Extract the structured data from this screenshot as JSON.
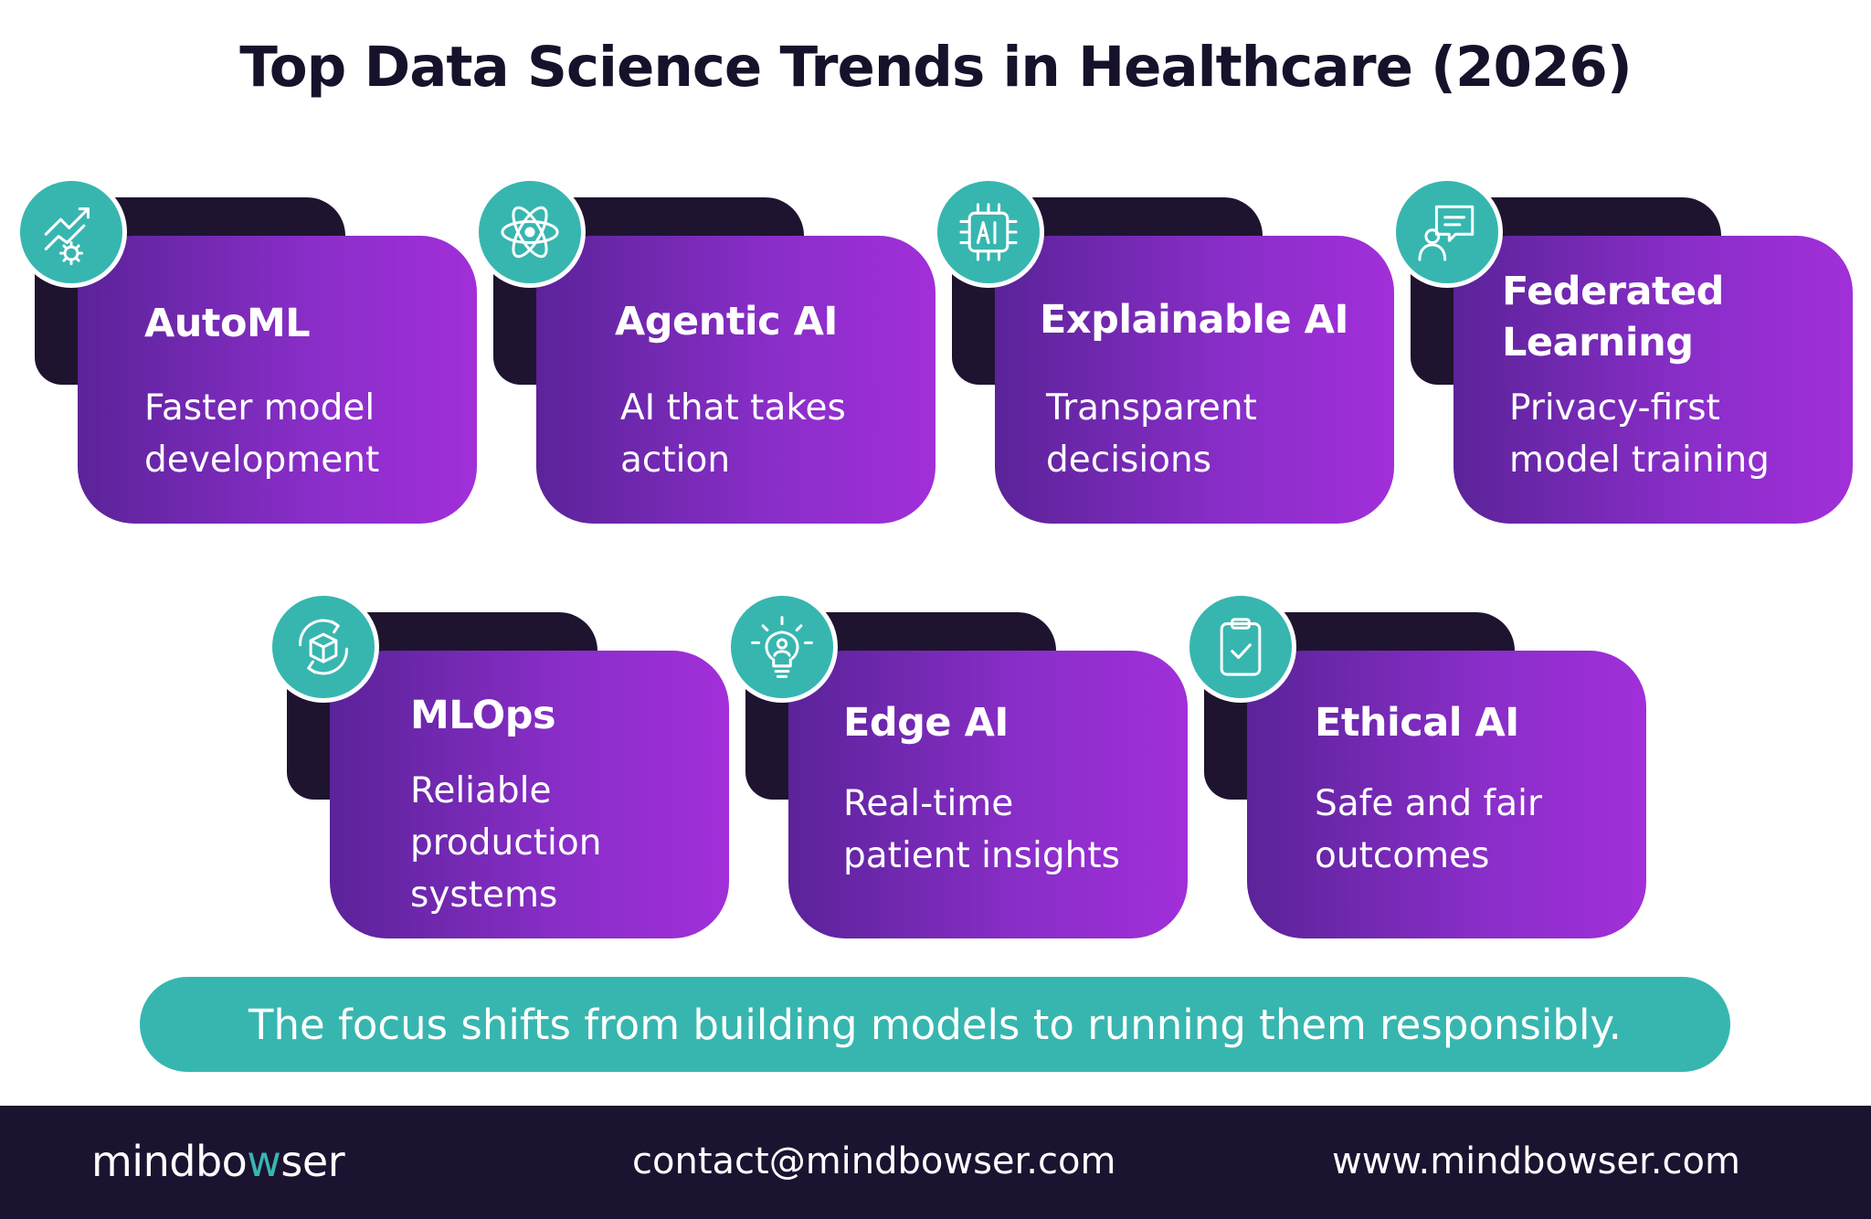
{
  "title": "Top Data Science Trends in Healthcare (2026)",
  "cards": [
    {
      "title": "AutoML",
      "description": [
        "Faster model",
        "development"
      ],
      "icon": "growth-chart-gear-icon"
    },
    {
      "title": "Agentic AI",
      "description": [
        "AI that takes",
        "action"
      ],
      "icon": "atom-icon"
    },
    {
      "title": "Explainable AI",
      "description": [
        "Transparent",
        "decisions"
      ],
      "icon": "ai-chip-icon"
    },
    {
      "title": "Federated Learning",
      "title_lines": [
        "Federated",
        "Learning"
      ],
      "description": [
        "Privacy-first",
        "model training"
      ],
      "icon": "user-chat-icon"
    },
    {
      "title": "MLOps",
      "description": [
        "Reliable",
        "production",
        "systems"
      ],
      "icon": "cube-cycle-icon"
    },
    {
      "title": "Edge AI",
      "description": [
        "Real-time",
        "patient insights"
      ],
      "icon": "lightbulb-person-icon"
    },
    {
      "title": "Ethical AI",
      "description": [
        "Safe and fair",
        "outcomes"
      ],
      "icon": "clipboard-check-icon"
    }
  ],
  "banner": "The focus shifts from building models to running them responsibly.",
  "footer": {
    "logo_prefix": "mindbo",
    "logo_accent": "w",
    "logo_suffix": "ser",
    "email": "contact@mindbowser.com",
    "website": "www.mindbowser.com"
  },
  "colors": {
    "teal": "#37b6b0",
    "purple_start": "#5b2399",
    "purple_end": "#a12fd9",
    "dark": "#1b1330"
  }
}
